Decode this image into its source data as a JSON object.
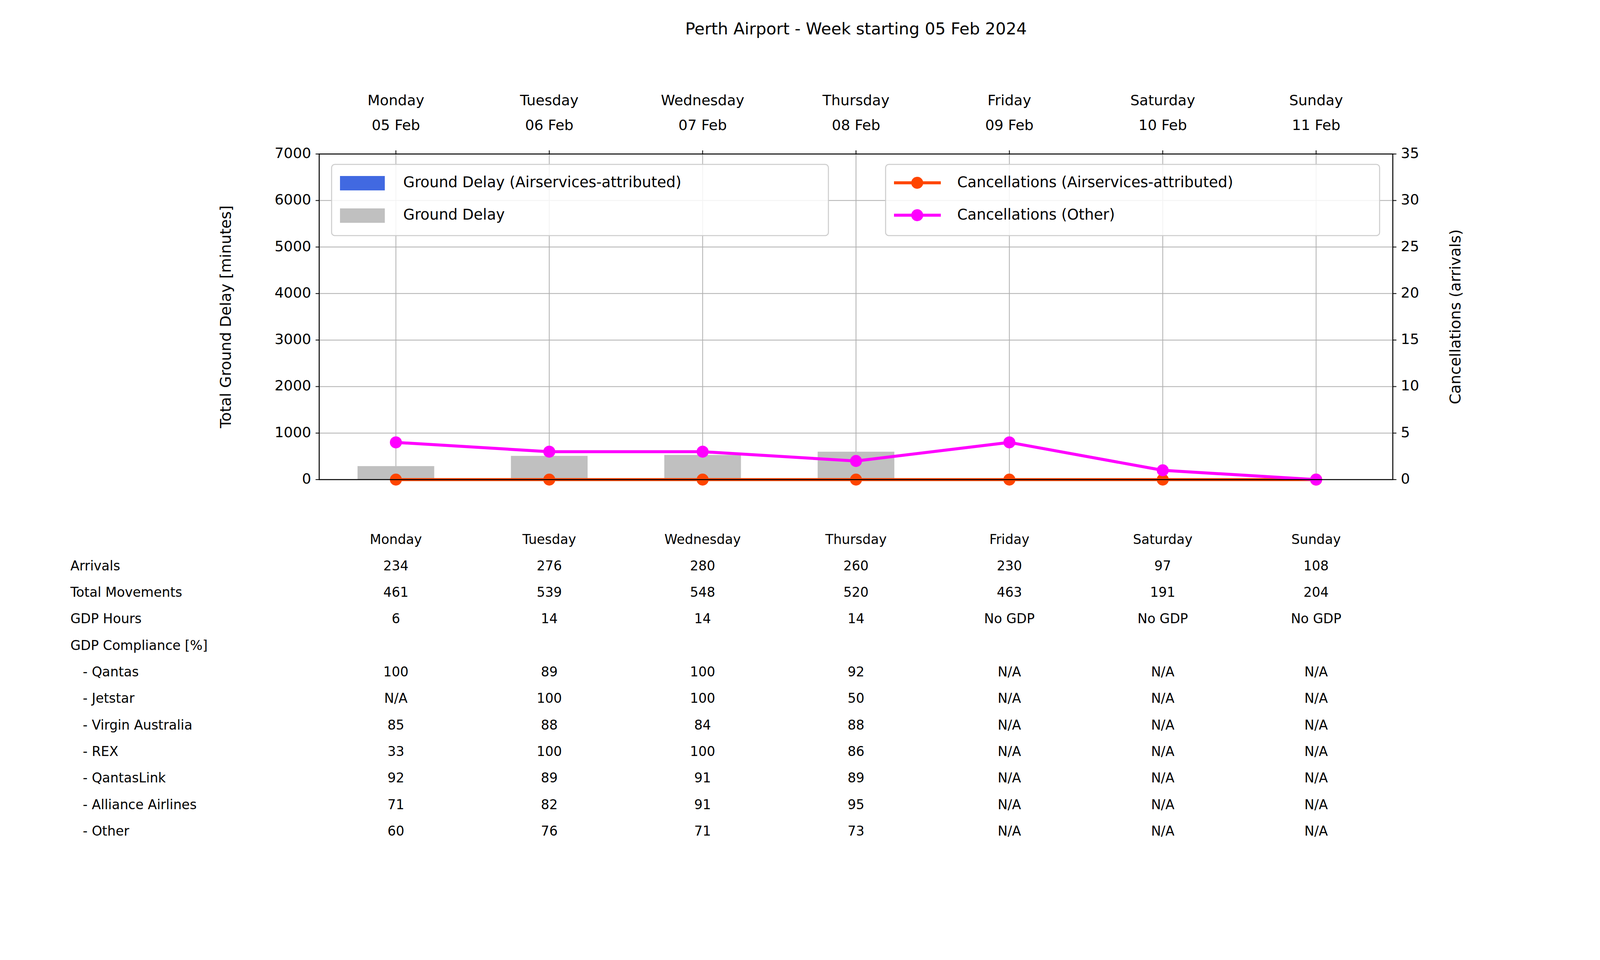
{
  "chart_data": {
    "type": "bar",
    "title": "Perth Airport - Week starting 05 Feb 2024",
    "categories": [
      "Monday\n05 Feb",
      "Tuesday\n06 Feb",
      "Wednesday\n07 Feb",
      "Thursday\n08 Feb",
      "Friday\n09 Feb",
      "Saturday\n10 Feb",
      "Sunday\n11 Feb"
    ],
    "y_label": "Total Ground Delay [minutes]",
    "y2_label": "Cancellations (arrivals)",
    "ylim": [
      0,
      7000
    ],
    "yticks": [
      0,
      1000,
      2000,
      3000,
      4000,
      5000,
      6000,
      7000
    ],
    "y2lim": [
      0,
      35
    ],
    "y2ticks": [
      0,
      5,
      10,
      15,
      20,
      25,
      30,
      35
    ],
    "grid": true,
    "legend": "upper",
    "series": [
      {
        "name": "Ground Delay (Airservices-attributed)",
        "type": "bar",
        "color": "#4169e1",
        "values": [
          0,
          0,
          0,
          0,
          0,
          0,
          0
        ]
      },
      {
        "name": "Ground Delay",
        "type": "bar",
        "color": "#c0c0c0",
        "values": [
          290,
          510,
          530,
          600,
          0,
          0,
          0
        ]
      },
      {
        "name": "Cancellations (Airservices-attributed)",
        "type": "line",
        "axis": "y2",
        "color": "#ff4500",
        "marker": "circle",
        "values": [
          0,
          0,
          0,
          0,
          0,
          0,
          0
        ]
      },
      {
        "name": "Cancellations (Other)",
        "type": "line",
        "axis": "y2",
        "color": "#ff00ff",
        "marker": "circle",
        "values": [
          4,
          3,
          3,
          2,
          4,
          1,
          0
        ]
      }
    ]
  },
  "table": {
    "columns": [
      "Monday",
      "Tuesday",
      "Wednesday",
      "Thursday",
      "Friday",
      "Saturday",
      "Sunday"
    ],
    "rows": [
      {
        "label": "Arrivals",
        "values": [
          234,
          276,
          280,
          260,
          230,
          97,
          108
        ]
      },
      {
        "label": "Total Movements",
        "values": [
          461,
          539,
          548,
          520,
          463,
          191,
          204
        ]
      },
      {
        "label": "GDP Hours",
        "values": [
          6,
          14,
          14,
          14,
          "No GDP",
          "No GDP",
          "No GDP"
        ]
      },
      {
        "label": "GDP Compliance [%]",
        "sub_rows": [
          {
            "label": "- Qantas",
            "values": [
              100,
              89,
              100,
              92,
              "N/A",
              "N/A",
              "N/A"
            ]
          },
          {
            "label": "- Jetstar",
            "values": [
              "N/A",
              100,
              100,
              50,
              "N/A",
              "N/A",
              "N/A"
            ]
          },
          {
            "label": "- Virgin Australia",
            "values": [
              85,
              88,
              84,
              88,
              "N/A",
              "N/A",
              "N/A"
            ]
          },
          {
            "label": "- REX",
            "values": [
              33,
              100,
              100,
              86,
              "N/A",
              "N/A",
              "N/A"
            ]
          },
          {
            "label": "- QantasLink",
            "values": [
              92,
              89,
              91,
              89,
              "N/A",
              "N/A",
              "N/A"
            ]
          },
          {
            "label": "- Alliance Airlines",
            "values": [
              71,
              82,
              91,
              95,
              "N/A",
              "N/A",
              "N/A"
            ]
          },
          {
            "label": "- Other",
            "values": [
              60,
              76,
              71,
              73,
              "N/A",
              "N/A",
              "N/A"
            ]
          }
        ]
      }
    ]
  }
}
